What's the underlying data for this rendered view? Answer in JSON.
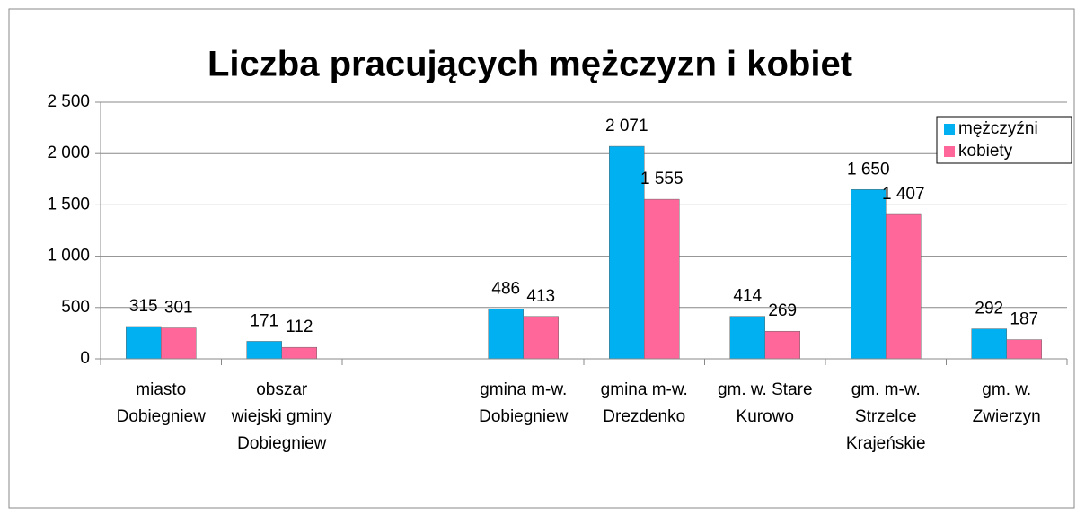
{
  "chart_data": {
    "type": "bar",
    "title": "Liczba pracujących mężczyzn i kobiet",
    "categories": [
      "miasto Dobiegniew",
      "obszar wiejski gminy Dobiegniew",
      null,
      "gmina m-w. Dobiegniew",
      "gmina m-w. Drezdenko",
      "gm. w. Stare Kurowo",
      "gm. m-w. Strzelce Krajeńskie",
      "gm. w. Zwierzyn"
    ],
    "series": [
      {
        "name": "mężczyźni",
        "color": "#00b0f0",
        "values": [
          315,
          171,
          null,
          486,
          2071,
          414,
          1650,
          292
        ],
        "value_labels": [
          "315",
          "171",
          null,
          "486",
          "2 071",
          "414",
          "1 650",
          "292"
        ]
      },
      {
        "name": "kobiety",
        "color": "#ff6699",
        "values": [
          301,
          112,
          null,
          413,
          1555,
          269,
          1407,
          187
        ],
        "value_labels": [
          "301",
          "112",
          null,
          "413",
          "1 555",
          "269",
          "1 407",
          "187"
        ]
      }
    ],
    "ylim": [
      0,
      2500
    ],
    "yticks": [
      0,
      500,
      {
        "value": 1000,
        "label": "1 000"
      },
      {
        "value": 1500,
        "label": "1 500"
      },
      {
        "value": 2000,
        "label": "2 000"
      },
      {
        "value": 2500,
        "label": "2 500"
      }
    ],
    "grid": true,
    "legend": "top-right"
  }
}
